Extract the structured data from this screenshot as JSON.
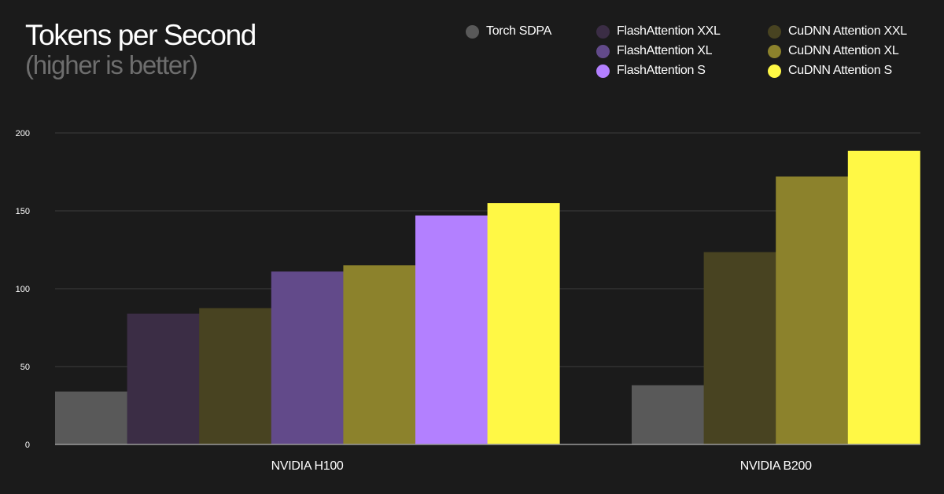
{
  "chart_data": {
    "type": "bar",
    "title": "Tokens per Second",
    "subtitle": "(higher is better)",
    "xlabel": "",
    "ylabel": "",
    "ylim": [
      0,
      200
    ],
    "yticks": [
      0,
      50,
      100,
      150,
      200
    ],
    "grid": true,
    "legend_position": "top-right",
    "categories": [
      "NVIDIA H100",
      "NVIDIA B200"
    ],
    "series": [
      {
        "name": "Torch SDPA",
        "color": "#595959",
        "values": [
          34,
          38
        ]
      },
      {
        "name": "FlashAttention XXL",
        "color": "#3b2d45",
        "values": [
          84,
          null
        ]
      },
      {
        "name": "CuDNN Attention XXL",
        "color": "#484321",
        "values": [
          87.5,
          123.5
        ]
      },
      {
        "name": "FlashAttention XL",
        "color": "#624a8a",
        "values": [
          111,
          null
        ]
      },
      {
        "name": "CuDNN Attention XL",
        "color": "#8c822c",
        "values": [
          115,
          172
        ]
      },
      {
        "name": "FlashAttention S",
        "color": "#b380ff",
        "values": [
          147,
          null
        ]
      },
      {
        "name": "CuDNN Attention S",
        "color": "#fff845",
        "values": [
          155,
          188.5
        ]
      }
    ]
  }
}
